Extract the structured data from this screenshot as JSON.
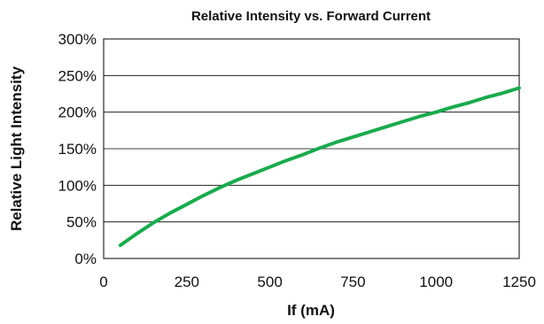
{
  "chart_data": {
    "type": "line",
    "title": "Relative Intensity vs. Forward Current",
    "xlabel": "If (mA)",
    "ylabel": "Relative Light Intensity",
    "xlim": [
      0,
      1250
    ],
    "ylim": [
      0,
      300
    ],
    "x_ticks": [
      0,
      250,
      500,
      750,
      1000,
      1250
    ],
    "x_tick_labels": [
      "0",
      "250",
      "500",
      "750",
      "1000",
      "1250"
    ],
    "y_ticks": [
      0,
      50,
      100,
      150,
      200,
      250,
      300
    ],
    "y_tick_labels": [
      "0%",
      "50%",
      "100%",
      "150%",
      "200%",
      "250%",
      "300%"
    ],
    "grid": "horizontal",
    "legend": "none",
    "series": [
      {
        "color": "#1aaa4e",
        "x": [
          50,
          100,
          150,
          200,
          250,
          300,
          350,
          400,
          450,
          500,
          550,
          600,
          650,
          700,
          750,
          800,
          850,
          900,
          950,
          1000,
          1050,
          1100,
          1150,
          1200,
          1250
        ],
        "y": [
          18,
          34,
          49,
          62,
          74,
          86,
          97,
          107,
          116,
          125,
          134,
          142,
          151,
          159,
          166,
          173,
          180,
          187,
          194,
          200,
          207,
          213,
          220,
          226,
          233
        ]
      }
    ]
  }
}
